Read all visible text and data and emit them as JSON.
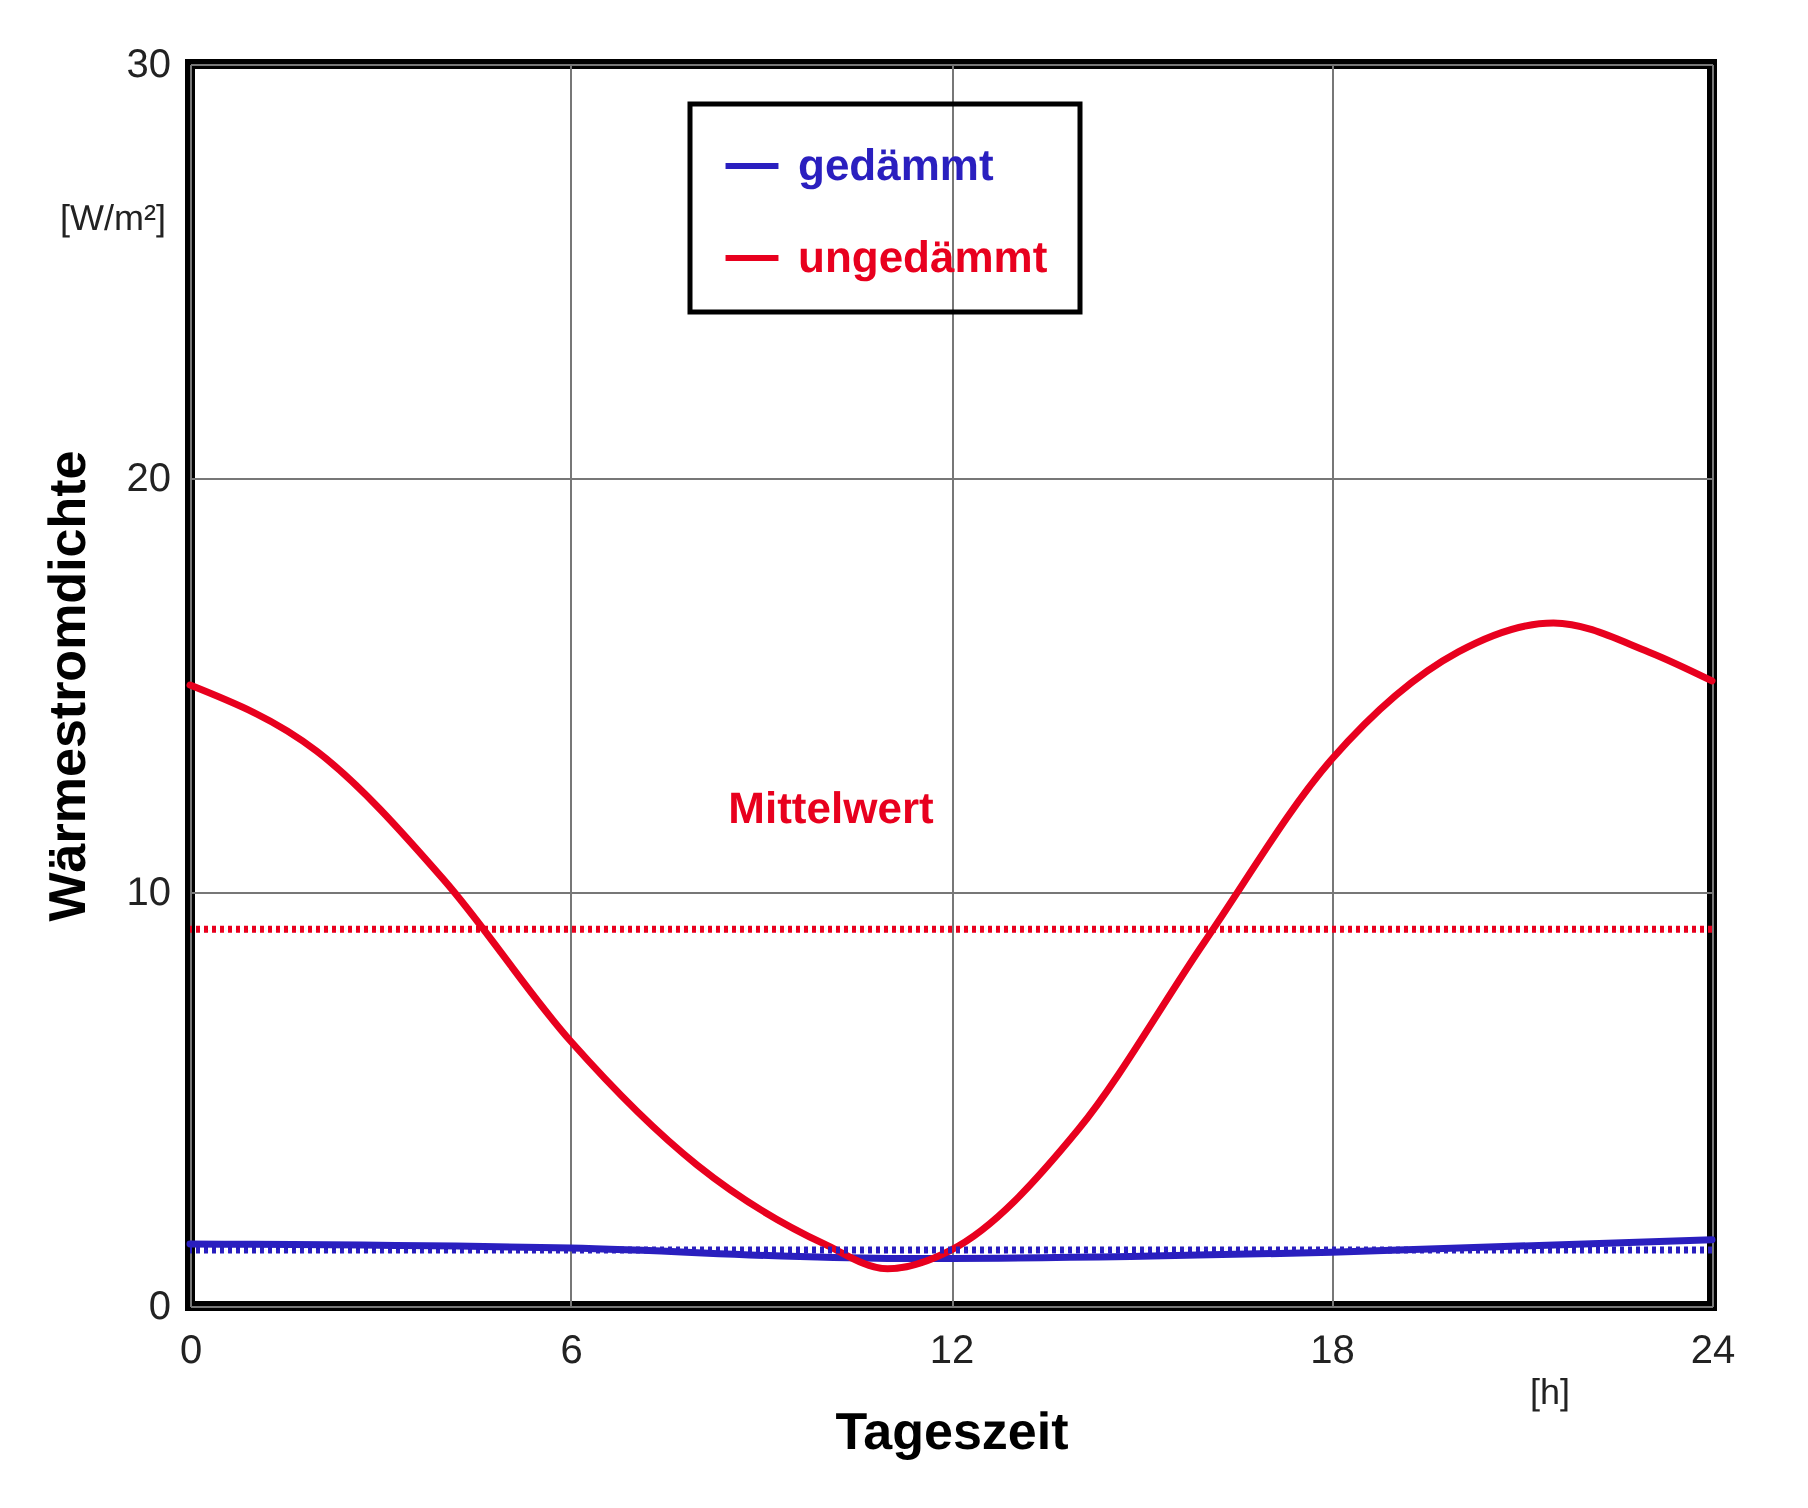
{
  "chart_data": {
    "type": "line",
    "xlabel": "Tageszeit",
    "ylabel": "Wärmestromdichte",
    "x": [
      0,
      2,
      4,
      6,
      8,
      10,
      11,
      12,
      14,
      16,
      18,
      20,
      21.5,
      23,
      24
    ],
    "series": [
      {
        "name": "gedämmt",
        "color": "#2a1fbf",
        "x": [
          0,
          6,
          11,
          12,
          18,
          24
        ],
        "values": [
          1.5,
          1.4,
          1.15,
          1.15,
          1.3,
          1.6
        ]
      },
      {
        "name": "ungedämmt",
        "color": "#e8001e",
        "values": [
          15.0,
          13.4,
          10.3,
          6.4,
          3.4,
          1.5,
          0.9,
          1.35,
          4.25,
          8.8,
          13.2,
          15.8,
          16.5,
          15.8,
          15.1
        ]
      }
    ],
    "ref_lines": [
      {
        "axis": "y",
        "value": 9.1,
        "label": "Mittelwert",
        "color": "#e8001e",
        "line_style": "dotted"
      },
      {
        "axis": "y",
        "value": 1.35,
        "color": "#2a1fbf",
        "line_style": "dotted"
      }
    ],
    "annotations": [
      "[W/m²]",
      "[h]"
    ],
    "xlim": [
      0,
      24
    ],
    "xticks": [
      0,
      6,
      12,
      18,
      24
    ],
    "ylim": [
      0,
      30
    ],
    "yticks": [
      0,
      10,
      20,
      30
    ],
    "grid": true,
    "legend": "top",
    "line_style": "solid",
    "marker": "none"
  }
}
